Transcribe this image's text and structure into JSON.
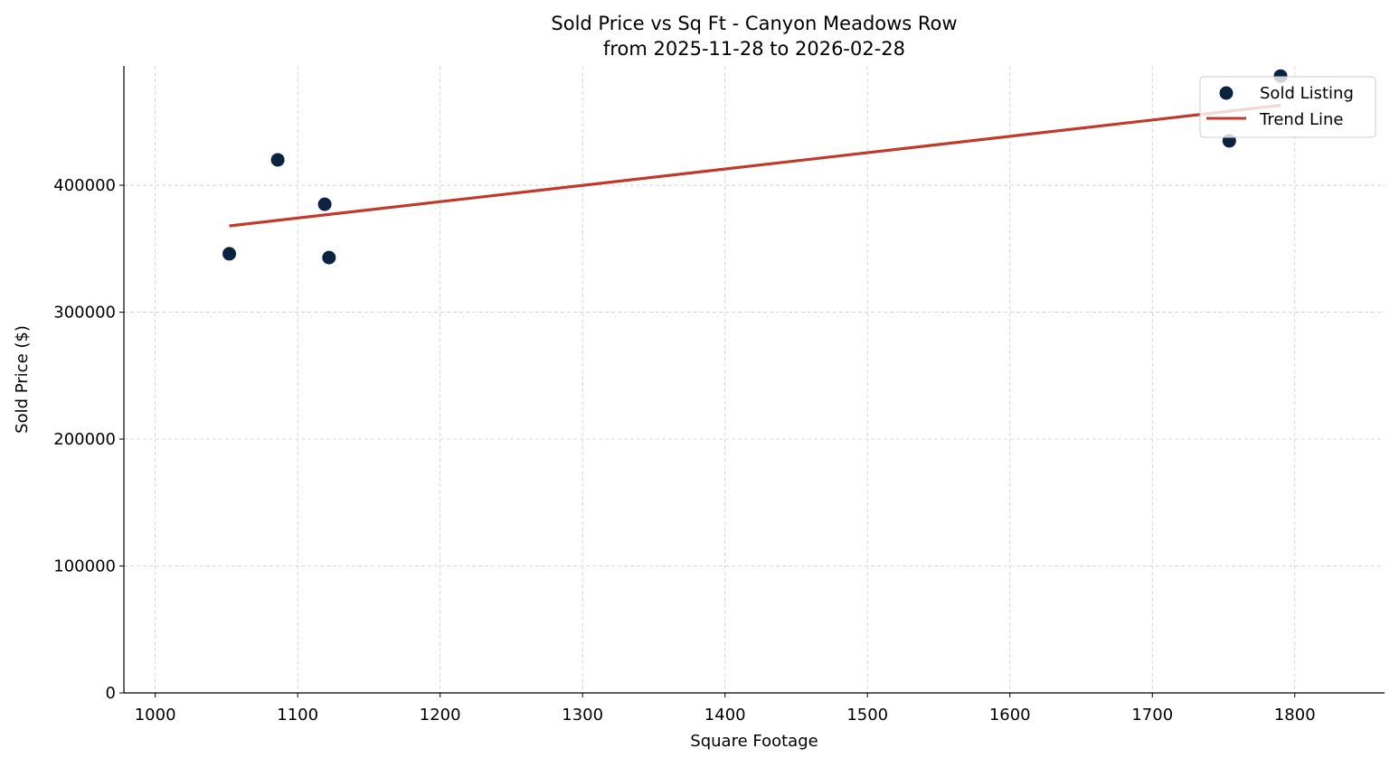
{
  "chart_data": {
    "type": "scatter",
    "title": "Sold Price vs Sq Ft - Canyon Meadows Row",
    "subtitle": "from 2025-11-28 to 2026-02-28",
    "xlabel": "Square Footage",
    "ylabel": "Sold Price ($)",
    "xlim": [
      978,
      1863
    ],
    "ylim": [
      0,
      494000
    ],
    "xticks": [
      1000,
      1100,
      1200,
      1300,
      1400,
      1500,
      1600,
      1700,
      1800
    ],
    "yticks": [
      0,
      100000,
      200000,
      300000,
      400000
    ],
    "grid": true,
    "legend_position": "top-right",
    "series": [
      {
        "name": "Sold Listing",
        "kind": "scatter",
        "color": "#0b2240",
        "x": [
          1052,
          1086,
          1119,
          1122,
          1754,
          1790
        ],
        "y": [
          346000,
          420000,
          385000,
          343000,
          435000,
          486000
        ]
      },
      {
        "name": "Trend Line",
        "kind": "line",
        "color": "#c0392b",
        "x": [
          1052,
          1790
        ],
        "y": [
          368000,
          463000
        ]
      }
    ]
  }
}
